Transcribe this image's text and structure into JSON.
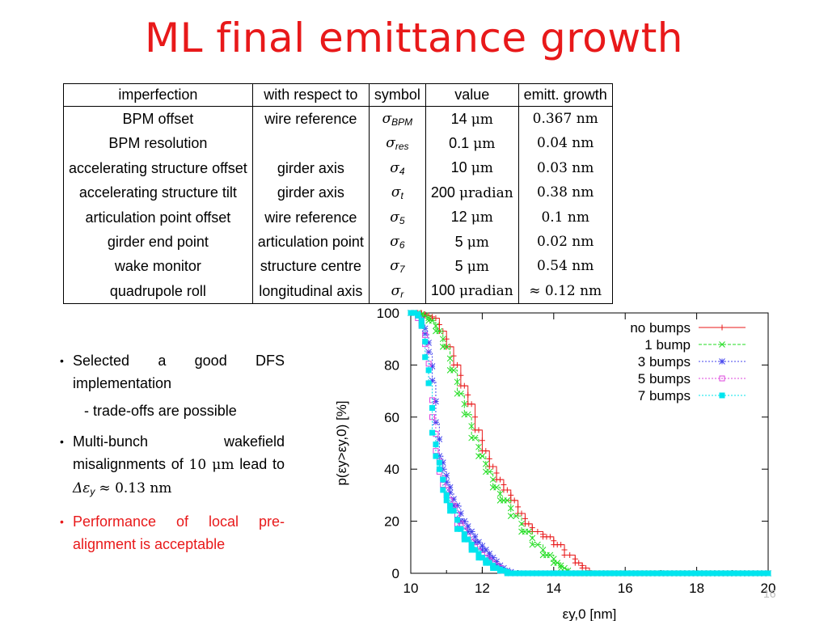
{
  "slide": {
    "title": "ML final emittance growth",
    "page_number": "16"
  },
  "table": {
    "headers": [
      "imperfection",
      "with respect to",
      "symbol",
      "value",
      "emitt. growth"
    ],
    "rows": [
      {
        "imperfection": "BPM offset",
        "reference": "wire reference",
        "symbol_base": "σ",
        "symbol_sub": "BPM",
        "value_num": "14",
        "value_unit": "μm",
        "growth": "0.367 nm"
      },
      {
        "imperfection": "BPM resolution",
        "reference": "",
        "symbol_base": "σ",
        "symbol_sub": "res",
        "value_num": "0.1",
        "value_unit": "μm",
        "growth": "0.04 nm"
      },
      {
        "imperfection": "accelerating structure offset",
        "reference": "girder axis",
        "symbol_base": "σ",
        "symbol_sub": "4",
        "value_num": "10",
        "value_unit": "μm",
        "growth": "0.03 nm"
      },
      {
        "imperfection": "accelerating structure tilt",
        "reference": "girder axis",
        "symbol_base": "σ",
        "symbol_sub": "t",
        "value_num": "200",
        "value_unit": "μradian",
        "growth": "0.38 nm"
      },
      {
        "imperfection": "articulation point offset",
        "reference": "wire reference",
        "symbol_base": "σ",
        "symbol_sub": "5",
        "value_num": "12",
        "value_unit": "μm",
        "growth": "0.1 nm"
      },
      {
        "imperfection": "girder end point",
        "reference": "articulation point",
        "symbol_base": "σ",
        "symbol_sub": "6",
        "value_num": "5",
        "value_unit": "μm",
        "growth": "0.02 nm"
      },
      {
        "imperfection": "wake monitor",
        "reference": "structure centre",
        "symbol_base": "σ",
        "symbol_sub": "7",
        "value_num": "5",
        "value_unit": "μm",
        "growth": "0.54 nm"
      },
      {
        "imperfection": "quadrupole roll",
        "reference": "longitudinal axis",
        "symbol_base": "σ",
        "symbol_sub": "r",
        "value_num": "100",
        "value_unit": "μradian",
        "growth": "≈ 0.12 nm"
      }
    ]
  },
  "bullets": {
    "b1": "Selected a good DFS implementation",
    "b1_sub": "- trade-offs are possible",
    "b2_pre": "Multi-bunch wakefield misalignments of",
    "b2_math": "10 μm",
    "b2_mid": "lead to",
    "b2_math2": "Δε",
    "b2_math2_sub": "y",
    "b2_math3": "≈ 0.13 nm",
    "b3": "Performance of local pre-alignment is acceptable",
    "bullet_glyph": "•",
    "red_color": "#e8191a"
  },
  "chart_data": {
    "type": "line",
    "xlabel": "εy,0 [nm]",
    "ylabel": "p(εy>εy,0) [%]",
    "xlim": [
      10,
      20
    ],
    "ylim": [
      0,
      100
    ],
    "xticks": [
      "10",
      "12",
      "14",
      "16",
      "18",
      "20"
    ],
    "yticks": [
      "0",
      "20",
      "40",
      "60",
      "80",
      "100"
    ],
    "legend_position": "top-right",
    "series": [
      {
        "name": "no bumps",
        "color": "#e8191a",
        "marker": "plus",
        "x": [
          10,
          10.3,
          10.4,
          10.6,
          10.8,
          11.0,
          11.2,
          11.4,
          11.6,
          11.8,
          12.0,
          12.2,
          12.4,
          12.6,
          12.8,
          13.0,
          13.2,
          13.4,
          13.7,
          14.0,
          14.3,
          14.6,
          14.8,
          15.0,
          20
        ],
        "y": [
          100,
          100,
          99,
          98,
          93,
          87,
          80,
          72,
          65,
          55,
          47,
          41,
          36,
          32,
          28,
          23,
          19,
          16,
          14,
          11,
          7,
          4,
          2,
          0,
          0
        ]
      },
      {
        "name": "1 bump",
        "color": "#22dd22",
        "marker": "x",
        "x": [
          10,
          10.3,
          10.5,
          10.7,
          10.9,
          11.1,
          11.3,
          11.5,
          11.7,
          11.9,
          12.1,
          12.3,
          12.5,
          12.8,
          13.1,
          13.4,
          13.7,
          14.0,
          14.2,
          14.4,
          20
        ],
        "y": [
          100,
          99,
          97,
          93,
          87,
          78,
          69,
          61,
          52,
          45,
          39,
          33,
          28,
          22,
          16,
          11,
          7,
          4,
          2,
          0,
          0
        ]
      },
      {
        "name": "3 bumps",
        "color": "#4444ee",
        "marker": "star",
        "x": [
          10,
          10.1,
          10.2,
          10.3,
          10.4,
          10.5,
          10.6,
          10.7,
          10.8,
          10.9,
          11.0,
          11.1,
          11.2,
          11.4,
          11.6,
          11.8,
          12.0,
          12.2,
          12.4,
          12.6,
          12.8,
          20
        ],
        "y": [
          100,
          100,
          99,
          96,
          92,
          85,
          74,
          58,
          45,
          40,
          35,
          31,
          26,
          20,
          16,
          12,
          9,
          6,
          3,
          1,
          0,
          0
        ]
      },
      {
        "name": "5 bumps",
        "color": "#dd44dd",
        "marker": "square",
        "x": [
          10,
          10.1,
          10.2,
          10.3,
          10.4,
          10.5,
          10.6,
          10.7,
          10.8,
          10.9,
          11.0,
          11.1,
          11.3,
          11.5,
          11.7,
          11.9,
          12.1,
          12.3,
          12.5,
          12.7,
          20
        ],
        "y": [
          100,
          100,
          98,
          95,
          88,
          73,
          60,
          47,
          39,
          34,
          30,
          26,
          19,
          14,
          10,
          7,
          5,
          3,
          1,
          0,
          0
        ]
      },
      {
        "name": "7 bumps",
        "color": "#00e5ee",
        "marker": "filled-square",
        "x": [
          10,
          10.1,
          10.2,
          10.3,
          10.4,
          10.5,
          10.6,
          10.7,
          10.8,
          10.9,
          11.0,
          11.1,
          11.3,
          11.5,
          11.7,
          11.9,
          12.1,
          12.3,
          12.5,
          12.7,
          20
        ],
        "y": [
          100,
          100,
          99,
          95,
          83,
          73,
          54,
          45,
          40,
          32,
          28,
          24,
          17,
          13,
          9,
          6,
          4,
          2,
          1,
          0,
          0
        ]
      }
    ]
  }
}
